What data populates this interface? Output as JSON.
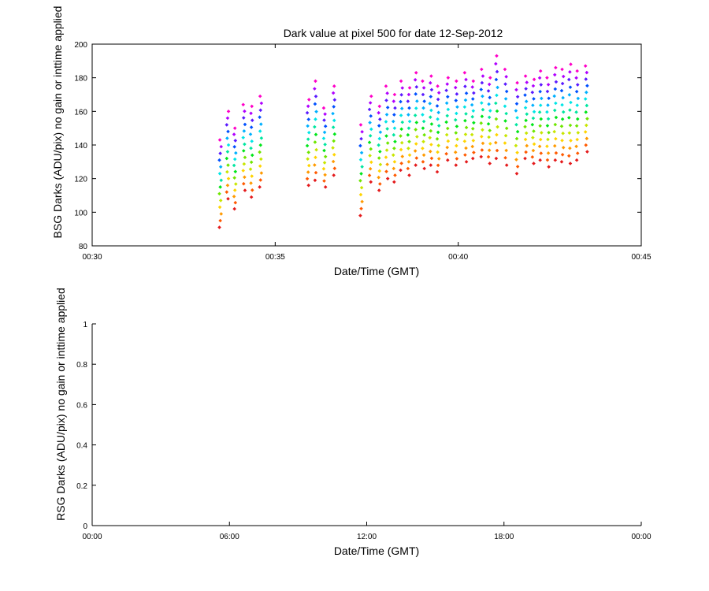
{
  "chart_data": [
    {
      "type": "scatter",
      "title": "Dark value at pixel 500 for date 12-Sep-2012",
      "xlabel": "Date/Time (GMT)",
      "ylabel": "BSG Darks (ADU/pix) no gain or inttime applied",
      "x_unit": "minutes after 00:00 GMT",
      "xlim": [
        30,
        45
      ],
      "ylim": [
        80,
        200
      ],
      "x_ticks": [
        30,
        35,
        40,
        45
      ],
      "x_tick_labels": [
        "00:30",
        "00:35",
        "00:40",
        "00:45"
      ],
      "y_ticks": [
        80,
        100,
        120,
        140,
        160,
        180,
        200
      ],
      "y_tick_labels": [
        "80",
        "100",
        "120",
        "140",
        "160",
        "180",
        "200"
      ],
      "grid": false,
      "legend": "none",
      "series_colors": [
        "#e41a1c",
        "#ff5a00",
        "#ff9a00",
        "#ffd400",
        "#c8e600",
        "#6ee600",
        "#00e61a",
        "#00e6a0",
        "#00e6e6",
        "#00b0ff",
        "#0050ff",
        "#5a1aff",
        "#b000ff",
        "#ff00c8"
      ],
      "groups": [
        {
          "x": 33.5,
          "low": 91,
          "high": 143
        },
        {
          "x": 33.7,
          "low": 108,
          "high": 160
        },
        {
          "x": 33.9,
          "low": 102,
          "high": 150
        },
        {
          "x": 34.15,
          "low": 113,
          "high": 164
        },
        {
          "x": 34.35,
          "low": 109,
          "high": 163
        },
        {
          "x": 34.6,
          "low": 115,
          "high": 169
        },
        {
          "x": 35.9,
          "low": 116,
          "high": 167
        },
        {
          "x": 36.1,
          "low": 119,
          "high": 178
        },
        {
          "x": 36.35,
          "low": 115,
          "high": 162
        },
        {
          "x": 36.6,
          "low": 122,
          "high": 175
        },
        {
          "x": 37.35,
          "low": 98,
          "high": 152
        },
        {
          "x": 37.6,
          "low": 118,
          "high": 169
        },
        {
          "x": 37.85,
          "low": 113,
          "high": 163
        },
        {
          "x": 38.05,
          "low": 120,
          "high": 175
        },
        {
          "x": 38.25,
          "low": 118,
          "high": 170
        },
        {
          "x": 38.45,
          "low": 125,
          "high": 178
        },
        {
          "x": 38.65,
          "low": 122,
          "high": 174
        },
        {
          "x": 38.85,
          "low": 128,
          "high": 183
        },
        {
          "x": 39.05,
          "low": 126,
          "high": 178
        },
        {
          "x": 39.25,
          "low": 128,
          "high": 181
        },
        {
          "x": 39.45,
          "low": 124,
          "high": 175
        },
        {
          "x": 39.7,
          "low": 131,
          "high": 180
        },
        {
          "x": 39.95,
          "low": 128,
          "high": 178
        },
        {
          "x": 40.2,
          "low": 130,
          "high": 183
        },
        {
          "x": 40.4,
          "low": 132,
          "high": 178
        },
        {
          "x": 40.65,
          "low": 133,
          "high": 185
        },
        {
          "x": 40.85,
          "low": 129,
          "high": 180
        },
        {
          "x": 41.05,
          "low": 132,
          "high": 193
        },
        {
          "x": 41.3,
          "low": 128,
          "high": 185
        },
        {
          "x": 41.6,
          "low": 123,
          "high": 177
        },
        {
          "x": 41.85,
          "low": 132,
          "high": 181
        },
        {
          "x": 42.05,
          "low": 129,
          "high": 179
        },
        {
          "x": 42.25,
          "low": 131,
          "high": 184
        },
        {
          "x": 42.45,
          "low": 127,
          "high": 180
        },
        {
          "x": 42.65,
          "low": 131,
          "high": 186
        },
        {
          "x": 42.85,
          "low": 130,
          "high": 185
        },
        {
          "x": 43.05,
          "low": 129,
          "high": 188
        },
        {
          "x": 43.25,
          "low": 131,
          "high": 184
        },
        {
          "x": 43.5,
          "low": 136,
          "high": 187
        }
      ]
    },
    {
      "type": "scatter",
      "title": "",
      "xlabel": "Date/Time (GMT)",
      "ylabel": "RSG Darks (ADU/pix) no gain or inttime applied",
      "xlim": [
        0,
        24
      ],
      "ylim": [
        0,
        1
      ],
      "x_ticks": [
        0,
        6,
        12,
        18,
        24
      ],
      "x_tick_labels": [
        "00:00",
        "06:00",
        "12:00",
        "18:00",
        "00:00"
      ],
      "y_ticks": [
        0,
        0.2,
        0.4,
        0.6,
        0.8,
        1
      ],
      "y_tick_labels": [
        "0",
        "0.2",
        "0.4",
        "0.6",
        "0.8",
        "1"
      ],
      "grid": false,
      "legend": "none",
      "points": []
    }
  ]
}
